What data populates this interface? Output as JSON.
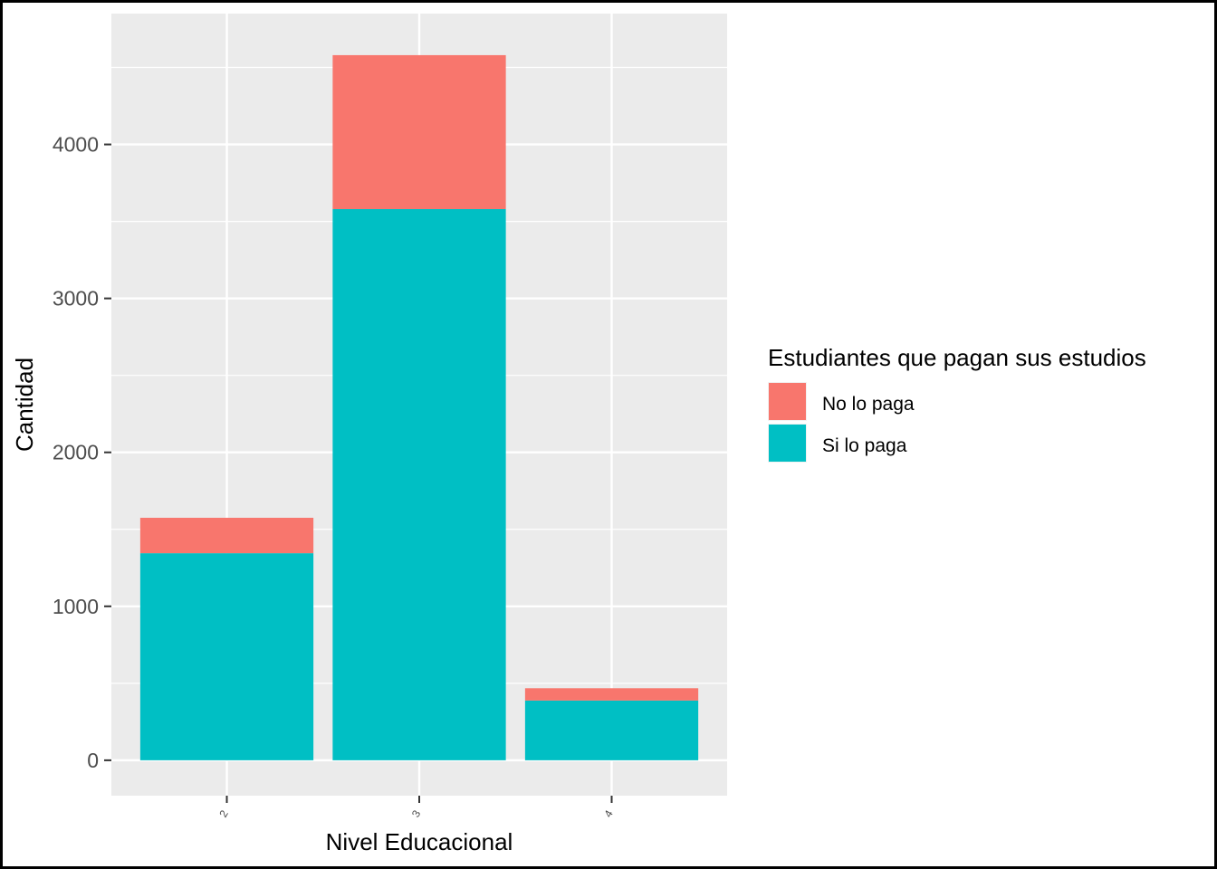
{
  "chart_data": {
    "type": "bar",
    "stacked": true,
    "title": "",
    "xlabel": "Nivel Educacional",
    "ylabel": "Cantidad",
    "categories": [
      "2",
      "3",
      "4"
    ],
    "series": [
      {
        "name": "No lo paga",
        "values": [
          230,
          1000,
          80
        ],
        "color": "#F8766D"
      },
      {
        "name": "Si lo paga",
        "values": [
          1345,
          3580,
          388
        ],
        "color": "#00BFC4"
      }
    ],
    "totals": [
      1575,
      4580,
      468
    ],
    "ylim": [
      -230,
      4850
    ],
    "yticks": [
      0,
      1000,
      2000,
      3000,
      4000
    ],
    "ytick_labels": [
      "0",
      "1000",
      "2000",
      "3000",
      "4000"
    ],
    "grid": true,
    "panel_background": "#EBEBEB",
    "grid_color": "#FFFFFF",
    "legend": {
      "title": "Estudiantes que pagan sus estudios",
      "position": "right",
      "entries": [
        {
          "label": "No lo paga",
          "color": "#F8766D"
        },
        {
          "label": "Si lo paga",
          "color": "#00BFC4"
        }
      ]
    }
  }
}
